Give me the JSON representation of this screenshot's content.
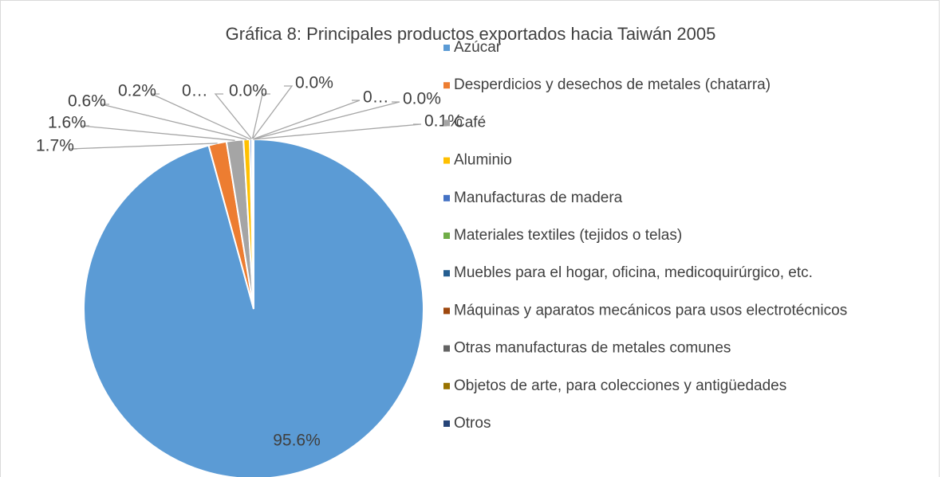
{
  "chart_data": {
    "type": "pie",
    "title": "Gráfica 8: Principales productos exportados hacia Taiwán 2005",
    "categories": [
      "Azúcar",
      "Desperdicios y desechos de metales (chatarra)",
      "Café",
      "Aluminio",
      "Manufacturas de madera",
      "Materiales textiles (tejidos o telas)",
      "Muebles para el hogar, oficina, medicoquirúrgico, etc.",
      "Máquinas y aparatos mecánicos para usos electrotécnicos",
      "Otras manufacturas de metales comunes",
      "Objetos de arte, para colecciones y antigüedades",
      "Otros"
    ],
    "values": [
      95.6,
      1.7,
      1.6,
      0.6,
      0.2,
      0.03,
      0,
      0,
      0.03,
      0,
      0.1
    ],
    "value_labels": [
      "95.6%",
      "1.7%",
      "1.6%",
      "0.6%",
      "0.2%",
      "0…",
      "0.0%",
      "0.0%",
      "0…",
      "0.0%",
      "0.1%"
    ],
    "colors": [
      "#5b9bd5",
      "#ed7d31",
      "#a5a5a5",
      "#ffc000",
      "#4472c4",
      "#70ad47",
      "#255e91",
      "#9e480e",
      "#636363",
      "#997300",
      "#264478"
    ],
    "legend": "right"
  }
}
